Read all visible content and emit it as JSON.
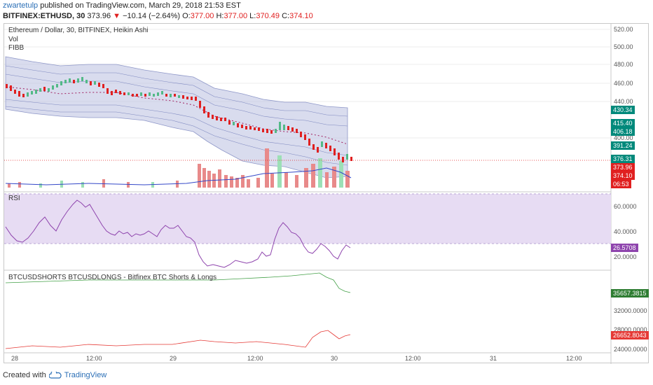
{
  "header": {
    "author": "zwartetulp",
    "published": " published on TradingView.com, March 29, 2018 21:53 EST",
    "symbol": "BITFINEX:ETHUSD, 30",
    "last": "373.96",
    "change_arrow": "▼",
    "change": "−10.14 (−2.64%)",
    "o_label": "O:",
    "o": "377.00",
    "h_label": "H:",
    "h": "377.00",
    "l_label": "L:",
    "l": "370.49",
    "c_label": "C:",
    "c": "374.10"
  },
  "main_pane": {
    "title": "Ethereum / Dollar, 30, BITFINEX, Heikin Ashi",
    "ind1": "Vol",
    "ind2": "FIBB",
    "y_ticks": [
      "520.00",
      "500.00",
      "480.00",
      "460.00",
      "440.00",
      "400.00"
    ],
    "tags": {
      "t1": "430.34",
      "t2": "415.40",
      "t3": "406.18",
      "t4": "391.24",
      "t5": "376.31",
      "t6": "373.96",
      "t7": "374.10",
      "t8": "06:53"
    }
  },
  "rsi_pane": {
    "title": "RSI",
    "y_ticks": [
      "60.0000",
      "40.0000",
      "20.0000"
    ],
    "tag": "26.5708"
  },
  "btc_pane": {
    "title": "BTCUSDSHORTS BTCUSDLONGS - Bitfinex BTC Shorts & Longs",
    "y_ticks": [
      "32000.0000",
      "28000.0000",
      "24000.0000"
    ],
    "tag_green": "35657.3815",
    "tag_red": "26652.8043"
  },
  "x_axis": [
    "28",
    "12:00",
    "29",
    "12:00",
    "30",
    "12:00",
    "31",
    "12:00"
  ],
  "footer": {
    "created": "Created with",
    "brand": "TradingView"
  },
  "colors": {
    "up": "#53b987",
    "down": "#e02020",
    "band": "#b9bfe0",
    "rsi_fill": "#e7dcf3",
    "rsi_line": "#8e44ad",
    "green_line": "#43a047",
    "red_line": "#e53935",
    "teal": "#00897b"
  }
}
